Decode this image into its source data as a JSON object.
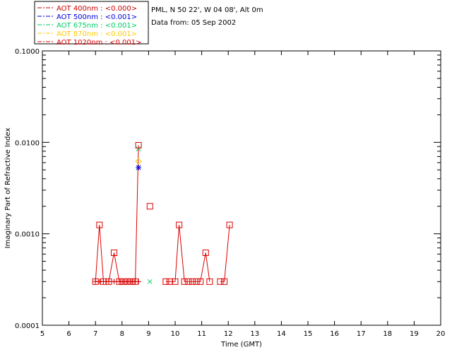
{
  "info": {
    "location": "PML, N 50 22', W 04 08', Alt 0m",
    "date": "Data from: 05 Sep 2002"
  },
  "chart_data": {
    "type": "scatter",
    "title": "",
    "xlabel": "Time (GMT)",
    "ylabel": "Imaginary Part of Refractive Index",
    "xlim": [
      5,
      20
    ],
    "ylim": [
      0.0001,
      0.1
    ],
    "yscale": "log",
    "xticks": [
      "5",
      "6",
      "7",
      "8",
      "9",
      "10",
      "11",
      "12",
      "13",
      "14",
      "15",
      "16",
      "17",
      "18",
      "19",
      "20"
    ],
    "yticks": [
      "0.0001",
      "0.0010",
      "0.0100",
      "0.1000"
    ],
    "grid": false,
    "legend_position": "top-left-outside",
    "series": [
      {
        "name": "AOT  400nm : <0.000>",
        "color": "#cc0000",
        "marker": "plus",
        "x": [
          7.0,
          7.15,
          7.3,
          7.5,
          7.7,
          7.9,
          8.05,
          8.2,
          8.35,
          8.5,
          8.62
        ],
        "y": [
          0.0003,
          0.0003,
          0.0003,
          0.0003,
          0.0003,
          0.0003,
          0.0003,
          0.0003,
          0.0003,
          0.0003,
          0.0003
        ]
      },
      {
        "name": "AOT  500nm : <0.001>",
        "color": "#0000dd",
        "marker": "star",
        "x": [
          8.62
        ],
        "y": [
          0.0053
        ]
      },
      {
        "name": "AOT  675nm : <0.001>",
        "color": "#00cc66",
        "marker": "x",
        "x": [
          8.62,
          9.05
        ],
        "y": [
          0.0085,
          0.0003
        ]
      },
      {
        "name": "AOT  870nm : <0.001>",
        "color": "#ffcc00",
        "marker": "diamond",
        "x": [
          8.62
        ],
        "y": [
          0.0062
        ]
      },
      {
        "name": "AOT 1020nm : <0.001>",
        "color": "#dd0000",
        "marker": "square",
        "x": [
          7.0,
          7.15,
          7.3,
          7.5,
          7.7,
          7.9,
          8.05,
          8.2,
          8.35,
          8.5,
          8.62,
          9.05,
          9.65,
          9.8,
          10.0,
          10.15,
          10.35,
          10.5,
          10.65,
          10.8,
          10.95,
          11.15,
          11.3,
          11.7,
          11.85,
          12.05
        ],
        "y": [
          0.0003,
          0.00125,
          0.0003,
          0.0003,
          0.00062,
          0.0003,
          0.0003,
          0.0003,
          0.0003,
          0.0003,
          0.0093,
          0.002,
          0.0003,
          0.0003,
          0.0003,
          0.00125,
          0.0003,
          0.0003,
          0.0003,
          0.0003,
          0.0003,
          0.00062,
          0.0003,
          0.0003,
          0.0003,
          0.00125
        ]
      }
    ]
  }
}
